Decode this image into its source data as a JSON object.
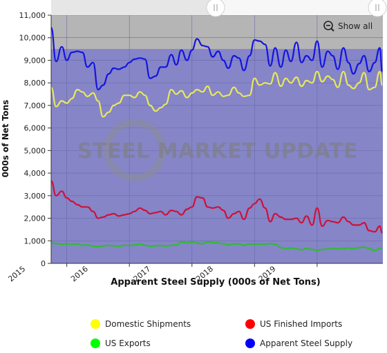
{
  "chart_data": {
    "type": "line",
    "title": "",
    "xlabel": "Apparent Steel Supply (000s of Net Tons)",
    "ylabel": "000s of Net Tons",
    "ylim": [
      0,
      11000
    ],
    "xlim": [
      2014.75,
      2020.05
    ],
    "yticks": [
      0,
      1000,
      2000,
      3000,
      4000,
      5000,
      6000,
      7000,
      8000,
      9000,
      10000,
      11000
    ],
    "ytick_labels": [
      "0",
      "1,000",
      "2,000",
      "3,000",
      "4,000",
      "5,000",
      "6,000",
      "7,000",
      "8,000",
      "9,000",
      "10,000",
      "11,000"
    ],
    "xticks": [
      2015,
      2016,
      2017,
      2018,
      2019
    ],
    "xtick_labels": [
      "2015",
      "2016",
      "2017",
      "2018",
      "2019"
    ],
    "grid": true,
    "legend_position": "bottom",
    "background_color": "#8585c8",
    "band_color": "#b5b5b5",
    "band_ylim": [
      9500,
      11000
    ],
    "show_all_label": "Show all",
    "watermark": "STEEL MARKET UPDATE",
    "x": [
      2014.75,
      2014.83,
      2014.92,
      2015.0,
      2015.08,
      2015.17,
      2015.25,
      2015.33,
      2015.42,
      2015.5,
      2015.58,
      2015.67,
      2015.75,
      2015.83,
      2015.92,
      2016.0,
      2016.08,
      2016.17,
      2016.25,
      2016.33,
      2016.42,
      2016.5,
      2016.58,
      2016.67,
      2016.75,
      2016.83,
      2016.92,
      2017.0,
      2017.08,
      2017.17,
      2017.25,
      2017.33,
      2017.42,
      2017.5,
      2017.58,
      2017.67,
      2017.75,
      2017.83,
      2017.92,
      2018.0,
      2018.08,
      2018.17,
      2018.25,
      2018.33,
      2018.42,
      2018.5,
      2018.58,
      2018.67,
      2018.75,
      2018.83,
      2018.92,
      2019.0,
      2019.08,
      2019.17,
      2019.25,
      2019.33,
      2019.42,
      2019.5,
      2019.58,
      2019.67,
      2019.75,
      2019.83,
      2019.92,
      2020.0,
      2020.04
    ],
    "series": [
      {
        "name": "Domestic Shipments",
        "color": "#e8e85a",
        "legend_color": "#ffff00",
        "values": [
          7800,
          6950,
          7200,
          7100,
          7300,
          7700,
          7600,
          7400,
          7550,
          7200,
          6500,
          6700,
          7000,
          7100,
          7450,
          7450,
          7350,
          7600,
          7450,
          7000,
          6750,
          6900,
          7050,
          7700,
          7500,
          7650,
          7350,
          7550,
          7700,
          7600,
          7850,
          7450,
          7600,
          7400,
          7450,
          7800,
          7550,
          7400,
          7450,
          8200,
          7900,
          8000,
          7950,
          8450,
          7850,
          8200,
          8000,
          8250,
          7850,
          8100,
          8000,
          8500,
          8050,
          8300,
          8150,
          7800,
          8500,
          7900,
          7750,
          8000,
          8450,
          7700,
          7800,
          8500,
          7900
        ]
      },
      {
        "name": "US Finished Imports",
        "color": "#d0103a",
        "legend_color": "#ff0000",
        "values": [
          3650,
          3000,
          3200,
          2900,
          2750,
          2600,
          2500,
          2500,
          2300,
          2000,
          2050,
          2150,
          2200,
          2100,
          2150,
          2200,
          2300,
          2450,
          2350,
          2200,
          2250,
          2300,
          2150,
          2350,
          2300,
          2150,
          2400,
          2500,
          2950,
          2900,
          2500,
          2450,
          2500,
          2350,
          2000,
          2200,
          2300,
          1950,
          2450,
          2650,
          2850,
          2450,
          1850,
          2200,
          2050,
          1950,
          1950,
          2000,
          1800,
          2100,
          1700,
          2450,
          1650,
          1900,
          1850,
          1800,
          2050,
          1850,
          1700,
          1700,
          1800,
          1450,
          1400,
          1650,
          1350
        ]
      },
      {
        "name": "US Exports",
        "color": "#2ebd2e",
        "legend_color": "#00ff00",
        "values": [
          900,
          880,
          850,
          870,
          840,
          860,
          800,
          820,
          760,
          740,
          770,
          800,
          780,
          760,
          800,
          790,
          820,
          850,
          800,
          760,
          780,
          790,
          760,
          800,
          820,
          950,
          900,
          960,
          900,
          870,
          950,
          920,
          900,
          870,
          820,
          860,
          870,
          800,
          850,
          860,
          850,
          850,
          880,
          850,
          700,
          650,
          680,
          650,
          600,
          660,
          620,
          560,
          620,
          640,
          650,
          640,
          660,
          680,
          650,
          700,
          720,
          660,
          560,
          660,
          650
        ]
      },
      {
        "name": "Apparent Steel Supply",
        "color": "#1414e0",
        "legend_color": "#0000ff",
        "values": [
          10450,
          8950,
          9600,
          9000,
          9350,
          9400,
          9350,
          8700,
          8900,
          7700,
          7900,
          8400,
          8650,
          8600,
          8700,
          8900,
          9050,
          9100,
          9050,
          8200,
          8300,
          8700,
          8700,
          9250,
          8800,
          9450,
          9000,
          9450,
          9950,
          9650,
          9600,
          9150,
          9400,
          9000,
          8650,
          9200,
          9100,
          8550,
          9200,
          9900,
          9850,
          9700,
          8750,
          9550,
          8700,
          9450,
          8950,
          9800,
          8900,
          9200,
          9000,
          9850,
          8700,
          9400,
          9200,
          8600,
          9550,
          8900,
          8400,
          8850,
          9200,
          8500,
          8900,
          9550,
          8500
        ]
      }
    ]
  }
}
